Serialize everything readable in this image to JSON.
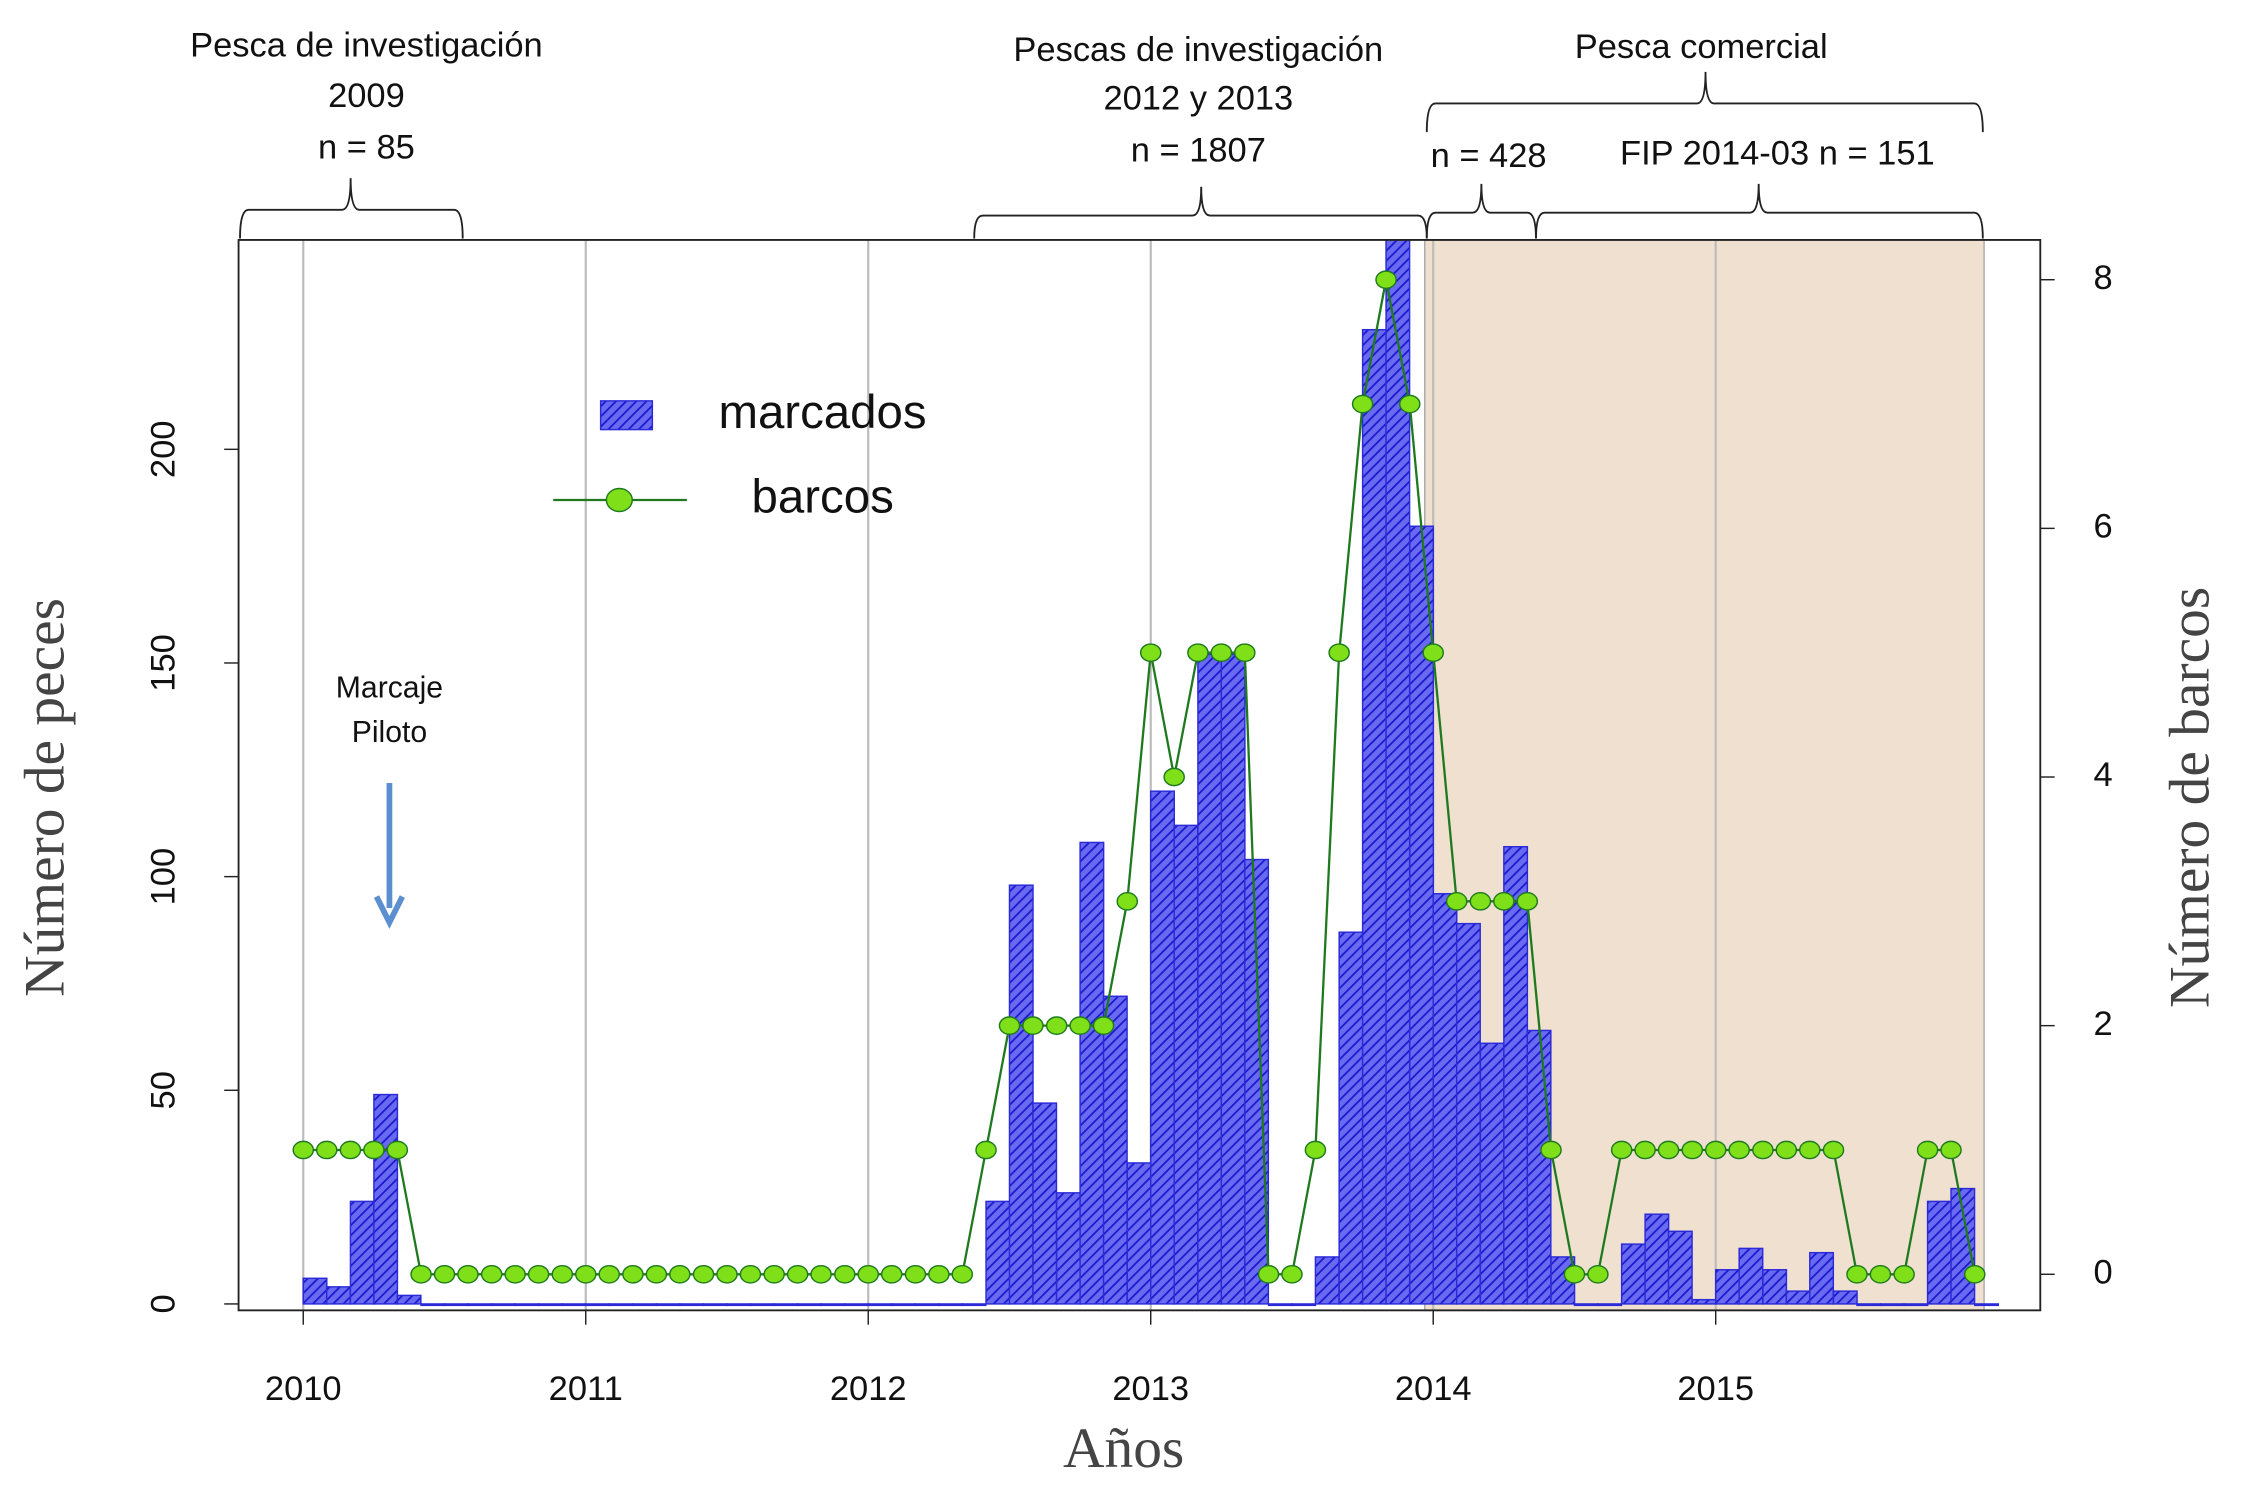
{
  "chart_data": {
    "type": "bar",
    "x": [
      2010,
      2010.083,
      2010.167,
      2010.25,
      2010.333,
      2010.417,
      2010.5,
      2010.583,
      2010.667,
      2010.75,
      2010.833,
      2010.917,
      2011,
      2011.083,
      2011.167,
      2011.25,
      2011.333,
      2011.417,
      2011.5,
      2011.583,
      2011.667,
      2011.75,
      2011.833,
      2011.917,
      2012,
      2012.083,
      2012.167,
      2012.25,
      2012.333,
      2012.417,
      2012.5,
      2012.583,
      2012.667,
      2012.75,
      2012.833,
      2012.917,
      2013,
      2013.083,
      2013.167,
      2013.25,
      2013.333,
      2013.417,
      2013.5,
      2013.583,
      2013.667,
      2013.75,
      2013.833,
      2013.917,
      2014,
      2014.083,
      2014.167,
      2014.25,
      2014.333,
      2014.417,
      2014.5,
      2014.583,
      2014.667,
      2014.75,
      2014.833,
      2014.917,
      2015,
      2015.083,
      2015.167,
      2015.25,
      2015.333,
      2015.417,
      2015.5,
      2015.583,
      2015.667,
      2015.75,
      2015.833,
      2015.917
    ],
    "series": [
      {
        "name": "marcados",
        "type": "bar",
        "color": "#2a2ad8",
        "values": [
          6,
          4,
          24,
          49,
          2,
          0,
          0,
          0,
          0,
          0,
          0,
          0,
          0,
          0,
          0,
          0,
          0,
          0,
          0,
          0,
          0,
          0,
          0,
          0,
          0,
          0,
          0,
          0,
          0,
          24,
          98,
          47,
          26,
          108,
          72,
          33,
          120,
          112,
          152,
          152,
          104,
          0,
          0,
          11,
          87,
          228,
          260,
          182,
          96,
          89,
          61,
          107,
          64,
          11,
          0,
          0,
          14,
          21,
          17,
          1,
          8,
          13,
          8,
          3,
          12,
          3,
          0,
          0,
          0,
          24,
          27,
          0
        ]
      },
      {
        "name": "barcos",
        "type": "line",
        "axis": "y2",
        "color": "#1f7a1f",
        "marker_color": "#7fe01a",
        "values": [
          1,
          1,
          1,
          1,
          1,
          0,
          0,
          0,
          0,
          0,
          0,
          0,
          0,
          0,
          0,
          0,
          0,
          0,
          0,
          0,
          0,
          0,
          0,
          0,
          0,
          0,
          0,
          0,
          0,
          1,
          2,
          2,
          2,
          2,
          2,
          3,
          5,
          4,
          5,
          5,
          5,
          0,
          0,
          1,
          5,
          7,
          8,
          7,
          5,
          3,
          3,
          3,
          3,
          1,
          0,
          0,
          1,
          1,
          1,
          1,
          1,
          1,
          1,
          1,
          1,
          1,
          0,
          0,
          0,
          1,
          1,
          0
        ]
      }
    ],
    "xlim": [
      2009.771,
      2016.149
    ],
    "xticks": [
      2010,
      2011,
      2012,
      2013,
      2014,
      2015
    ],
    "ylim": [
      -1.5,
      249
    ],
    "yticks": [
      0,
      50,
      100,
      150,
      200
    ],
    "y2lim": [
      -0.29,
      8.32
    ],
    "y2ticks": [
      0,
      2,
      4,
      6,
      8
    ],
    "grid": true,
    "x_label": "Años",
    "y_label": "Número de peces",
    "y2_label": "Número de barcos",
    "shaded_span": [
      2013.97,
      2015.95
    ],
    "shade_color": "#f0e0d0",
    "annotations": {
      "pilot": [
        "Marcaje",
        "Piloto"
      ],
      "research_2009": [
        "Pesca de investigación",
        "2009",
        "n = 85"
      ],
      "research_2012_2013": [
        "Pescas de investigación",
        "2012 y 2013",
        "n = 1807"
      ],
      "commercial": "Pesca comercial",
      "commercial_n": "n = 428",
      "fip": "FIP 2014-03 n = 151"
    }
  }
}
